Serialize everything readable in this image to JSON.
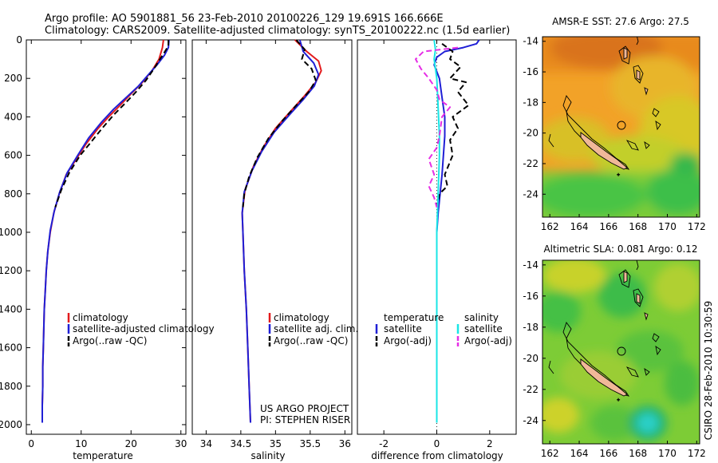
{
  "title_line1": "Argo profile: AO 5901881_56 23-Feb-2010 20100226_129 19.691S 166.666E",
  "title_line2": "Climatology: CARS2009. Satellite-adjusted climatology: synTS_20100222.nc (1.5d earlier)",
  "credit_line1": "US ARGO PROJECT",
  "credit_line2": "PI: STEPHEN RISER",
  "timestamp": "CSIRO 28-Feb-2010 10:30:59",
  "colors": {
    "red": "#e31a1c",
    "blue": "#1f1fd6",
    "black": "#000000",
    "cyan": "#19e6e6",
    "magenta": "#e62ee6"
  },
  "chart_data": [
    {
      "type": "line",
      "xlabel": "temperature",
      "ylabel": "",
      "xlim": [
        -1,
        31
      ],
      "ylim": [
        2050,
        0
      ],
      "xticks": [
        0,
        10,
        20,
        30
      ],
      "yticks": [
        0,
        200,
        400,
        600,
        800,
        1000,
        1200,
        1400,
        1600,
        1800,
        2000
      ],
      "legend": [
        "climatology",
        "satellite-adjusted climatology",
        "Argo(..raw -QC)"
      ],
      "series": [
        {
          "name": "climatology",
          "color": "red",
          "dash": false,
          "points": [
            [
              26.5,
              0
            ],
            [
              26.3,
              40
            ],
            [
              25.6,
              100
            ],
            [
              24.2,
              160
            ],
            [
              22.3,
              220
            ],
            [
              20.0,
              280
            ],
            [
              17.8,
              340
            ],
            [
              15.5,
              400
            ],
            [
              13.4,
              460
            ],
            [
              11.0,
              540
            ],
            [
              9.0,
              620
            ],
            [
              7.0,
              700
            ],
            [
              5.6,
              800
            ],
            [
              4.5,
              900
            ],
            [
              3.8,
              1000
            ],
            [
              3.3,
              1100
            ],
            [
              3.0,
              1200
            ],
            [
              2.8,
              1300
            ],
            [
              2.6,
              1400
            ],
            [
              2.5,
              1500
            ],
            [
              2.4,
              1600
            ],
            [
              2.3,
              1700
            ],
            [
              2.3,
              1800
            ],
            [
              2.2,
              1900
            ],
            [
              2.2,
              1990
            ]
          ]
        },
        {
          "name": "satellite-adjusted climatology",
          "color": "blue",
          "dash": false,
          "points": [
            [
              27.6,
              0
            ],
            [
              27.5,
              40
            ],
            [
              26.7,
              80
            ],
            [
              25.2,
              130
            ],
            [
              23.5,
              180
            ],
            [
              21.5,
              240
            ],
            [
              19.0,
              300
            ],
            [
              16.5,
              360
            ],
            [
              14.0,
              430
            ],
            [
              11.5,
              510
            ],
            [
              9.3,
              600
            ],
            [
              7.2,
              690
            ],
            [
              5.7,
              790
            ],
            [
              4.6,
              890
            ],
            [
              3.8,
              990
            ],
            [
              3.3,
              1100
            ],
            [
              3.0,
              1200
            ],
            [
              2.8,
              1300
            ],
            [
              2.6,
              1400
            ],
            [
              2.5,
              1500
            ],
            [
              2.4,
              1600
            ],
            [
              2.3,
              1700
            ],
            [
              2.3,
              1800
            ],
            [
              2.2,
              1900
            ],
            [
              2.2,
              1990
            ]
          ]
        },
        {
          "name": "Argo(..raw -QC)",
          "color": "black",
          "dash": true,
          "points": [
            [
              27.5,
              0
            ],
            [
              27.5,
              30
            ],
            [
              26.8,
              60
            ],
            [
              25.8,
              100
            ],
            [
              24.6,
              150
            ],
            [
              23.0,
              210
            ],
            [
              21.0,
              270
            ],
            [
              18.8,
              330
            ],
            [
              16.5,
              390
            ],
            [
              14.2,
              460
            ],
            [
              12.0,
              530
            ],
            [
              9.8,
              600
            ],
            [
              7.6,
              690
            ],
            [
              6.0,
              780
            ],
            [
              4.8,
              870
            ]
          ]
        }
      ]
    },
    {
      "type": "line",
      "xlabel": "salinity",
      "ylabel": "",
      "xlim": [
        33.8,
        36.1
      ],
      "ylim": [
        2050,
        0
      ],
      "xticks": [
        34,
        34.5,
        35,
        35.5,
        36
      ],
      "yticks": [],
      "legend": [
        "climatology",
        "satellite adj. clim.",
        "Argo(..raw -QC)"
      ],
      "series": [
        {
          "name": "climatology",
          "color": "red",
          "dash": false,
          "points": [
            [
              35.28,
              0
            ],
            [
              35.45,
              60
            ],
            [
              35.62,
              110
            ],
            [
              35.66,
              160
            ],
            [
              35.58,
              220
            ],
            [
              35.42,
              290
            ],
            [
              35.22,
              370
            ],
            [
              35.0,
              460
            ],
            [
              34.82,
              560
            ],
            [
              34.68,
              660
            ],
            [
              34.56,
              780
            ],
            [
              34.52,
              900
            ],
            [
              34.53,
              1000
            ],
            [
              34.55,
              1200
            ],
            [
              34.58,
              1400
            ],
            [
              34.6,
              1600
            ],
            [
              34.62,
              1800
            ],
            [
              34.64,
              1990
            ]
          ]
        },
        {
          "name": "satellite adj. clim.",
          "color": "blue",
          "dash": false,
          "points": [
            [
              35.35,
              0
            ],
            [
              35.4,
              60
            ],
            [
              35.55,
              120
            ],
            [
              35.62,
              180
            ],
            [
              35.56,
              240
            ],
            [
              35.4,
              310
            ],
            [
              35.2,
              390
            ],
            [
              34.98,
              480
            ],
            [
              34.8,
              580
            ],
            [
              34.66,
              680
            ],
            [
              34.55,
              790
            ],
            [
              34.52,
              900
            ],
            [
              34.53,
              1000
            ],
            [
              34.55,
              1200
            ],
            [
              34.58,
              1400
            ],
            [
              34.6,
              1600
            ],
            [
              34.62,
              1800
            ],
            [
              34.64,
              1990
            ]
          ]
        },
        {
          "name": "Argo(..raw -QC)",
          "color": "black",
          "dash": true,
          "points": [
            [
              35.3,
              0
            ],
            [
              35.42,
              50
            ],
            [
              35.38,
              100
            ],
            [
              35.52,
              150
            ],
            [
              35.58,
              210
            ],
            [
              35.48,
              270
            ],
            [
              35.3,
              340
            ],
            [
              35.1,
              420
            ],
            [
              34.9,
              510
            ],
            [
              34.74,
              610
            ],
            [
              34.62,
              710
            ],
            [
              34.55,
              800
            ],
            [
              34.53,
              870
            ]
          ]
        }
      ]
    },
    {
      "type": "line",
      "xlabel": "difference from climatology",
      "ylabel": "",
      "xlim": [
        -3,
        3
      ],
      "ylim": [
        2050,
        0
      ],
      "xticks": [
        -2,
        0,
        2
      ],
      "yticks": [],
      "legend": [
        "temperature",
        "satellite",
        "Argo(-adj)",
        "salinity",
        "satellite",
        "Argo(-adj)"
      ],
      "series": [
        {
          "name": "temperature satellite",
          "color": "blue",
          "dash": false,
          "points": [
            [
              1.6,
              0
            ],
            [
              1.5,
              20
            ],
            [
              1.0,
              40
            ],
            [
              0.3,
              60
            ],
            [
              0.0,
              90
            ],
            [
              -0.1,
              130
            ],
            [
              0.1,
              200
            ],
            [
              0.2,
              300
            ],
            [
              0.3,
              400
            ],
            [
              0.3,
              500
            ],
            [
              0.25,
              600
            ],
            [
              0.2,
              700
            ],
            [
              0.05,
              900
            ],
            [
              0.0,
              1000
            ],
            [
              0.0,
              1990
            ]
          ]
        },
        {
          "name": "temperature Argo(-adj)",
          "color": "black",
          "dash": true,
          "points": [
            [
              0.2,
              20
            ],
            [
              0.6,
              60
            ],
            [
              0.5,
              100
            ],
            [
              0.9,
              140
            ],
            [
              0.5,
              200
            ],
            [
              1.1,
              220
            ],
            [
              0.8,
              270
            ],
            [
              1.2,
              340
            ],
            [
              0.6,
              400
            ],
            [
              0.8,
              460
            ],
            [
              0.5,
              520
            ],
            [
              0.6,
              600
            ],
            [
              0.3,
              700
            ],
            [
              0.4,
              760
            ],
            [
              0.1,
              800
            ],
            [
              0.0,
              870
            ]
          ]
        },
        {
          "name": "salinity satellite",
          "color": "cyan",
          "dash": false,
          "points": [
            [
              -0.1,
              0
            ],
            [
              -0.05,
              50
            ],
            [
              -0.1,
              100
            ],
            [
              0.0,
              200
            ],
            [
              0.05,
              350
            ],
            [
              0.1,
              500
            ],
            [
              0.1,
              600
            ],
            [
              0.05,
              800
            ],
            [
              0.0,
              1000
            ],
            [
              0.0,
              1990
            ]
          ]
        },
        {
          "name": "salinity Argo(-adj)",
          "color": "magenta",
          "dash": true,
          "points": [
            [
              0.8,
              40
            ],
            [
              -0.5,
              60
            ],
            [
              -0.8,
              100
            ],
            [
              -0.6,
              150
            ],
            [
              -0.3,
              200
            ],
            [
              0.0,
              260
            ],
            [
              0.1,
              310
            ],
            [
              0.5,
              350
            ],
            [
              0.2,
              400
            ],
            [
              0.1,
              500
            ],
            [
              0.0,
              560
            ],
            [
              -0.3,
              620
            ],
            [
              -0.1,
              700
            ],
            [
              -0.3,
              760
            ],
            [
              -0.1,
              820
            ],
            [
              0.0,
              870
            ]
          ]
        }
      ]
    },
    {
      "type": "heatmap",
      "title": "AMSR-E SST: 27.6 Argo: 27.5",
      "xlim": [
        161.5,
        172.2
      ],
      "ylim": [
        -25.5,
        -13.7
      ],
      "xticks": [
        162,
        164,
        166,
        168,
        170,
        172
      ],
      "yticks": [
        -14,
        -16,
        -18,
        -20,
        -22,
        -24
      ]
    },
    {
      "type": "heatmap",
      "title": "Altimetric SLA: 0.081 Argo: 0.12",
      "xlim": [
        161.5,
        172.2
      ],
      "ylim": [
        -25.5,
        -13.7
      ],
      "xticks": [
        162,
        164,
        166,
        168,
        170,
        172
      ],
      "yticks": [
        -14,
        -16,
        -18,
        -20,
        -22,
        -24
      ]
    }
  ]
}
